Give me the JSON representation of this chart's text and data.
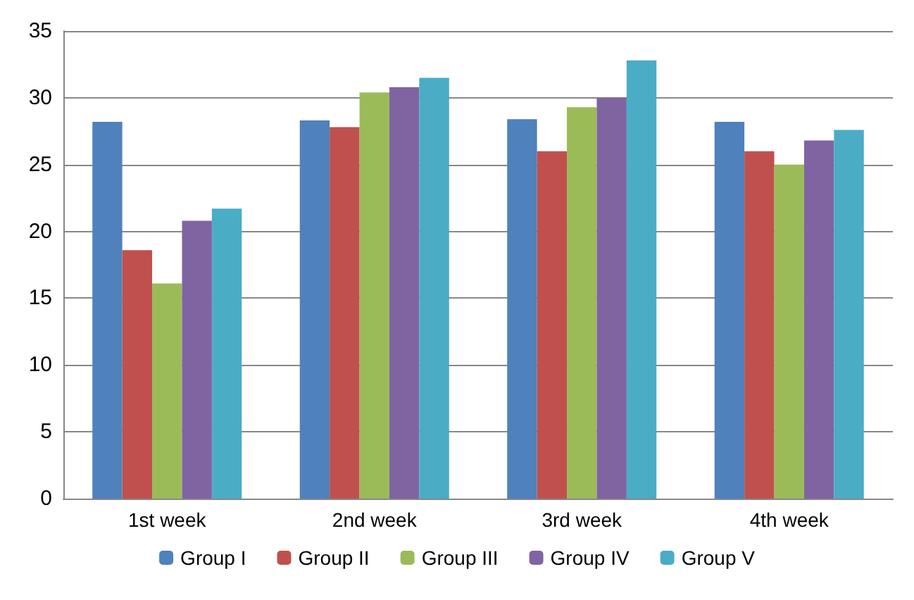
{
  "chart_data": {
    "type": "bar",
    "categories": [
      "1st week",
      "2nd week",
      "3rd week",
      "4th week"
    ],
    "series": [
      {
        "name": "Group I",
        "color": "#4f81bd",
        "values": [
          28.2,
          28.3,
          28.4,
          28.2
        ]
      },
      {
        "name": "Group II",
        "color": "#c0504d",
        "values": [
          18.6,
          27.8,
          26.0,
          26.0
        ]
      },
      {
        "name": "Group III",
        "color": "#9bbb59",
        "values": [
          16.1,
          30.4,
          29.3,
          25.0
        ]
      },
      {
        "name": "Group IV",
        "color": "#8064a2",
        "values": [
          20.8,
          30.8,
          30.0,
          26.8
        ]
      },
      {
        "name": "Group V",
        "color": "#4bacc6",
        "values": [
          21.7,
          31.5,
          32.8,
          27.6
        ]
      }
    ],
    "ylim": [
      0,
      35
    ],
    "yticks": [
      0,
      5,
      10,
      15,
      20,
      25,
      30,
      35
    ],
    "grid": "y",
    "legend": "bottom"
  }
}
